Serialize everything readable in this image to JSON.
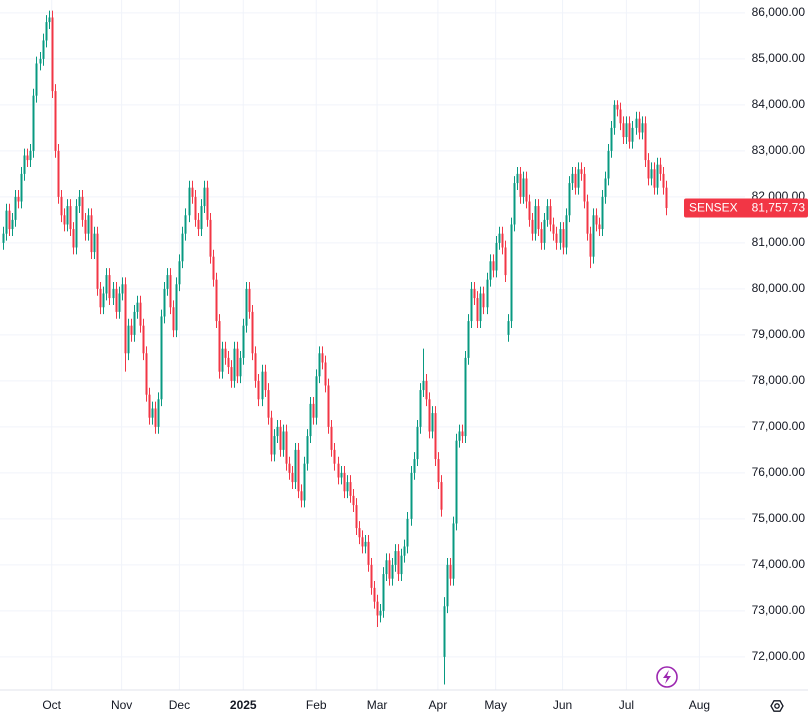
{
  "chart_data": {
    "type": "candlestick",
    "name": "SENSEX",
    "last_label": "81,757.73",
    "up_color": "#089981",
    "down_color": "#f23645",
    "grid": true,
    "ylim": [
      71280,
      86280
    ],
    "yticks": [
      {
        "value": 72000,
        "label": "72,000.00"
      },
      {
        "value": 73000,
        "label": "73,000.00"
      },
      {
        "value": 74000,
        "label": "74,000.00"
      },
      {
        "value": 75000,
        "label": "75,000.00"
      },
      {
        "value": 76000,
        "label": "76,000.00"
      },
      {
        "value": 77000,
        "label": "77,000.00"
      },
      {
        "value": 78000,
        "label": "78,000.00"
      },
      {
        "value": 79000,
        "label": "79,000.00"
      },
      {
        "value": 80000,
        "label": "80,000.00"
      },
      {
        "value": 81000,
        "label": "81,000.00"
      },
      {
        "value": 82000,
        "label": "82,000.00"
      },
      {
        "value": 83000,
        "label": "83,000.00"
      },
      {
        "value": 84000,
        "label": "84,000.00"
      },
      {
        "value": 85000,
        "label": "85,000.00"
      },
      {
        "value": 86000,
        "label": "86,000.00"
      }
    ],
    "xlim": [
      -1,
      244
    ],
    "xticks": [
      {
        "value": 16,
        "label": "Oct"
      },
      {
        "value": 39,
        "label": "Nov"
      },
      {
        "value": 58,
        "label": "Dec"
      },
      {
        "value": 79,
        "label": "2025"
      },
      {
        "value": 103,
        "label": "Feb"
      },
      {
        "value": 123,
        "label": "Mar"
      },
      {
        "value": 143,
        "label": "Apr"
      },
      {
        "value": 162,
        "label": "May"
      },
      {
        "value": 184,
        "label": "Jun"
      },
      {
        "value": 205,
        "label": "Jul"
      },
      {
        "value": 229,
        "label": "Aug"
      }
    ],
    "open": [
      81000,
      81200,
      81700,
      81300,
      81500,
      82000,
      81900,
      82500,
      82900,
      82800,
      83000,
      84200,
      84900,
      85000,
      85400,
      85800,
      85900,
      84300,
      83000,
      82000,
      81600,
      81400,
      81800,
      81300,
      80900,
      81800,
      82000,
      81500,
      81200,
      81600,
      80800,
      81200,
      80000,
      79600,
      79900,
      80300,
      79800,
      80000,
      79500,
      79900,
      80100,
      78600,
      79200,
      79000,
      79500,
      79700,
      79200,
      78600,
      77700,
      77200,
      77400,
      77000,
      77600,
      79400,
      80000,
      80300,
      79600,
      79100,
      80100,
      80600,
      81200,
      81600,
      82200,
      82000,
      81500,
      81300,
      81800,
      82200,
      81500,
      80700,
      80200,
      79300,
      78200,
      78700,
      78500,
      78300,
      78000,
      78700,
      78100,
      78500,
      79200,
      80000,
      79500,
      78600,
      78000,
      77600,
      78200,
      77800,
      77200,
      76400,
      76800,
      77000,
      76500,
      76900,
      76200,
      76000,
      75800,
      76500,
      75600,
      75400,
      76200,
      76800,
      77500,
      77200,
      78100,
      78600,
      78400,
      77900,
      77000,
      76500,
      76200,
      75900,
      76000,
      75600,
      75800,
      75500,
      75300,
      74800,
      74600,
      74400,
      74500,
      74000,
      73500,
      73200,
      72900,
      73000,
      73800,
      74100,
      73700,
      74000,
      74300,
      73800,
      74200,
      74400,
      75000,
      76000,
      76300,
      77000,
      77800,
      78000,
      77600,
      76900,
      77300,
      76300,
      75800,
      72000,
      73100,
      74000,
      73700,
      74900,
      76700,
      76900,
      76800,
      78500,
      79300,
      80000,
      79800,
      79300,
      79900,
      79600,
      80200,
      80600,
      80400,
      81000,
      81200,
      80900,
      79000,
      79300,
      81400,
      82300,
      82500,
      82000,
      82400,
      81900,
      81500,
      81200,
      81800,
      81300,
      81000,
      81500,
      81800,
      81400,
      81200,
      81000,
      81300,
      80900,
      81600,
      82300,
      82500,
      82200,
      82600,
      82500,
      81900,
      81200,
      80700,
      81600,
      81400,
      81300,
      82000,
      82400,
      83000,
      83500,
      84000,
      83900,
      83600,
      83300,
      83600,
      83200,
      83500,
      83700,
      83400,
      83600,
      82800,
      82400,
      82600,
      82200,
      82700,
      82500,
      82200
    ],
    "high": [
      81350,
      81850,
      81850,
      81650,
      82150,
      82150,
      82650,
      83050,
      83050,
      83150,
      84350,
      85050,
      85150,
      85550,
      85950,
      86050,
      86050,
      84450,
      83150,
      82150,
      81750,
      81950,
      81950,
      81450,
      81950,
      82150,
      82150,
      81650,
      81750,
      81750,
      81350,
      81350,
      80150,
      80050,
      80450,
      80450,
      80150,
      80150,
      80050,
      80250,
      80250,
      79350,
      79350,
      79650,
      79850,
      79850,
      79350,
      78750,
      77850,
      77550,
      77550,
      77750,
      79550,
      80150,
      80450,
      80450,
      79750,
      80250,
      80750,
      81350,
      81750,
      82350,
      82350,
      82150,
      81650,
      81950,
      82350,
      82350,
      81650,
      80850,
      80350,
      79450,
      78850,
      78850,
      78650,
      78450,
      78850,
      78850,
      78650,
      79350,
      80150,
      80150,
      79650,
      78750,
      78150,
      78350,
      78350,
      77950,
      77350,
      76950,
      77150,
      77150,
      77050,
      77050,
      76350,
      76150,
      76650,
      76650,
      75750,
      76350,
      76950,
      77650,
      77650,
      78250,
      78750,
      78750,
      78550,
      78050,
      77150,
      76650,
      76350,
      76150,
      76150,
      75950,
      75950,
      75650,
      75450,
      74950,
      74750,
      74650,
      74650,
      74150,
      73650,
      73350,
      73150,
      73950,
      74250,
      74250,
      74150,
      74450,
      74450,
      74350,
      74550,
      75150,
      76150,
      76450,
      77150,
      77950,
      78700,
      78150,
      77750,
      77450,
      77450,
      76450,
      75950,
      73300,
      74150,
      74150,
      75050,
      76850,
      77050,
      77050,
      78650,
      79450,
      80150,
      80150,
      79950,
      80050,
      80050,
      80350,
      80750,
      80750,
      81150,
      81350,
      81350,
      81050,
      79450,
      81550,
      82450,
      82650,
      82650,
      82550,
      82550,
      82050,
      81650,
      81950,
      81950,
      81450,
      81650,
      81950,
      81950,
      81550,
      81350,
      81450,
      81450,
      81750,
      82450,
      82650,
      82650,
      82750,
      82750,
      82650,
      82050,
      81350,
      81750,
      81750,
      81550,
      82150,
      82550,
      83150,
      83650,
      84100,
      84100,
      84050,
      83750,
      83750,
      83750,
      83650,
      83850,
      83850,
      83750,
      83750,
      82950,
      82750,
      82750,
      82850,
      82850,
      82650,
      82350
    ],
    "low": [
      80850,
      81050,
      81150,
      81150,
      81350,
      81750,
      81750,
      82350,
      82650,
      82650,
      82850,
      84050,
      84750,
      84850,
      85250,
      85650,
      84150,
      82850,
      81850,
      81450,
      81250,
      81250,
      81150,
      80750,
      80750,
      81650,
      81350,
      81050,
      81050,
      80650,
      80650,
      79850,
      79450,
      79450,
      79750,
      79650,
      79650,
      79350,
      79350,
      79750,
      78200,
      78450,
      78850,
      78850,
      79350,
      79050,
      78450,
      77550,
      77050,
      77050,
      76850,
      76850,
      77450,
      79250,
      79850,
      79450,
      78950,
      78950,
      79950,
      80450,
      81050,
      81450,
      81850,
      81350,
      81150,
      81150,
      81650,
      81350,
      80550,
      80050,
      79150,
      78050,
      78050,
      78350,
      78150,
      77850,
      77850,
      77950,
      77950,
      78350,
      79050,
      79350,
      78450,
      77850,
      77450,
      77450,
      77650,
      77050,
      76250,
      76250,
      76650,
      76350,
      76350,
      76050,
      75850,
      75650,
      75650,
      75450,
      75250,
      75250,
      76050,
      76650,
      77050,
      77050,
      77950,
      78250,
      77750,
      76850,
      76350,
      76050,
      75750,
      75750,
      75450,
      75450,
      75350,
      75150,
      74650,
      74450,
      74250,
      74250,
      73850,
      73350,
      73050,
      72650,
      72750,
      72850,
      73650,
      73550,
      73550,
      73850,
      73650,
      73650,
      74050,
      74250,
      74850,
      75850,
      76150,
      76850,
      77650,
      77450,
      76750,
      76750,
      76150,
      75650,
      75050,
      71400,
      72950,
      73550,
      73550,
      74750,
      76550,
      76650,
      76650,
      78350,
      79150,
      79650,
      79150,
      79150,
      79450,
      79450,
      80050,
      80250,
      80250,
      80850,
      80750,
      80150,
      78850,
      79150,
      81250,
      82150,
      81850,
      81850,
      81750,
      81350,
      81050,
      81050,
      81150,
      80850,
      80850,
      81350,
      81250,
      81050,
      80850,
      80850,
      80750,
      80750,
      81450,
      82150,
      82050,
      82050,
      82350,
      81750,
      81050,
      80450,
      80550,
      81250,
      81150,
      81150,
      81850,
      82250,
      82850,
      83350,
      83750,
      83450,
      83150,
      83150,
      83050,
      83050,
      83350,
      83250,
      83250,
      82650,
      82250,
      82250,
      82050,
      82050,
      82350,
      82050,
      81600
    ],
    "close": [
      81200,
      81700,
      81300,
      81500,
      82000,
      81900,
      82500,
      82900,
      82800,
      83000,
      84200,
      84900,
      85000,
      85400,
      85800,
      85900,
      84300,
      83000,
      82000,
      81600,
      81400,
      81800,
      81300,
      80900,
      81800,
      82000,
      81500,
      81200,
      81600,
      80800,
      81200,
      80000,
      79600,
      79900,
      80300,
      79800,
      80000,
      79500,
      79900,
      80100,
      78600,
      79200,
      79000,
      79500,
      79700,
      79200,
      78600,
      77700,
      77200,
      77400,
      77000,
      77600,
      79400,
      80000,
      80300,
      79600,
      79100,
      80100,
      80600,
      81200,
      81600,
      82200,
      82000,
      81500,
      81300,
      81800,
      82200,
      81500,
      80700,
      80200,
      79300,
      78200,
      78700,
      78500,
      78300,
      78000,
      78700,
      78100,
      78500,
      79200,
      80000,
      79500,
      78600,
      78000,
      77600,
      78200,
      77800,
      77200,
      76400,
      76800,
      77000,
      76500,
      76900,
      76200,
      76000,
      75800,
      76500,
      75600,
      75400,
      76200,
      76800,
      77500,
      77200,
      78100,
      78600,
      78400,
      77900,
      77000,
      76500,
      76200,
      75900,
      76000,
      75600,
      75800,
      75500,
      75300,
      74800,
      74600,
      74400,
      74500,
      74000,
      73500,
      73200,
      72900,
      73000,
      73800,
      74100,
      73700,
      74000,
      74300,
      73800,
      74200,
      74400,
      75000,
      76000,
      76300,
      77000,
      77800,
      78000,
      77600,
      76900,
      77300,
      76300,
      75800,
      75200,
      73100,
      74000,
      73700,
      74900,
      76700,
      76900,
      76800,
      78500,
      79300,
      80000,
      79800,
      79300,
      79900,
      79600,
      80200,
      80600,
      80400,
      81000,
      81200,
      80900,
      80300,
      79300,
      81400,
      82300,
      82500,
      82000,
      82400,
      81900,
      81500,
      81200,
      81800,
      81300,
      81000,
      81500,
      81800,
      81400,
      81200,
      81000,
      81300,
      80900,
      81600,
      82300,
      82500,
      82200,
      82600,
      82500,
      81900,
      81200,
      80700,
      81600,
      81400,
      81300,
      82000,
      82400,
      83000,
      83500,
      84000,
      83900,
      83600,
      83300,
      83600,
      83200,
      83500,
      83700,
      83400,
      83600,
      82800,
      82400,
      82600,
      82200,
      82700,
      82500,
      82200,
      81757.73
    ]
  }
}
